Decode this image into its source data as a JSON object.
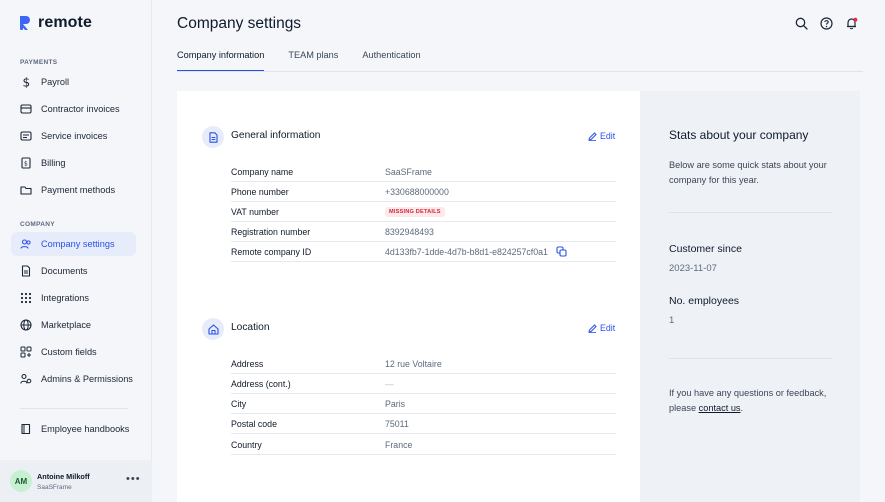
{
  "app": {
    "logo_text": "remote",
    "logo_mark": "R"
  },
  "sidebar": {
    "section_payments": "PAYMENTS",
    "payments_items": [
      {
        "label": "Payroll",
        "icon": "dollar-icon"
      },
      {
        "label": "Contractor invoices",
        "icon": "invoice-icon"
      },
      {
        "label": "Service invoices",
        "icon": "receipt-icon"
      },
      {
        "label": "Billing",
        "icon": "billing-icon"
      },
      {
        "label": "Payment methods",
        "icon": "folder-icon"
      }
    ],
    "section_company": "COMPANY",
    "company_items": [
      {
        "label": "Company settings",
        "icon": "people-icon",
        "active": true
      },
      {
        "label": "Documents",
        "icon": "document-icon"
      },
      {
        "label": "Integrations",
        "icon": "grid-dots-icon"
      },
      {
        "label": "Marketplace",
        "icon": "globe-icon"
      },
      {
        "label": "Custom fields",
        "icon": "custom-fields-icon"
      },
      {
        "label": "Admins & Permissions",
        "icon": "admins-icon"
      }
    ],
    "extra_item": {
      "label": "Employee handbooks",
      "icon": "book-icon"
    },
    "user": {
      "initials": "AM",
      "name": "Antoine Milkoff",
      "company": "SaaSFrame",
      "more": "•••"
    }
  },
  "header": {
    "title": "Company settings",
    "icons": [
      "search-icon",
      "help-icon",
      "notifications-icon"
    ],
    "tabs": [
      {
        "label": "Company information",
        "active": true
      },
      {
        "label": "TEAM plans",
        "active": false
      },
      {
        "label": "Authentication",
        "active": false
      }
    ]
  },
  "general": {
    "title": "General information",
    "edit_label": "Edit",
    "rows": [
      {
        "label": "Company name",
        "value": "SaaSFrame"
      },
      {
        "label": "Phone number",
        "value": "+330688000000"
      },
      {
        "label": "VAT number",
        "value": "MISSING DETAILS"
      },
      {
        "label": "Registration number",
        "value": "8392948493"
      },
      {
        "label": "Remote company ID",
        "value": "4d133fb7-1dde-4d7b-b8d1-e824257cf0a1"
      }
    ]
  },
  "location": {
    "title": "Location",
    "edit_label": "Edit",
    "rows": [
      {
        "label": "Address",
        "value": "12 rue Voltaire"
      },
      {
        "label": "Address (cont.)",
        "value": "—"
      },
      {
        "label": "City",
        "value": "Paris"
      },
      {
        "label": "Postal code",
        "value": "75011"
      },
      {
        "label": "Country",
        "value": "France"
      }
    ]
  },
  "stats": {
    "title": "Stats about your company",
    "description": "Below are some quick stats about your company for this year.",
    "customer_since_label": "Customer since",
    "customer_since_value": "2023-11-07",
    "employees_label": "No. employees",
    "employees_value": "1",
    "footer_text": "If you have any questions or feedback, please ",
    "footer_link": "contact us",
    "footer_end": "."
  },
  "colors": {
    "accent": "#2950e8",
    "badge_red": "#d6263c",
    "active_bg": "#e7ecfb"
  }
}
